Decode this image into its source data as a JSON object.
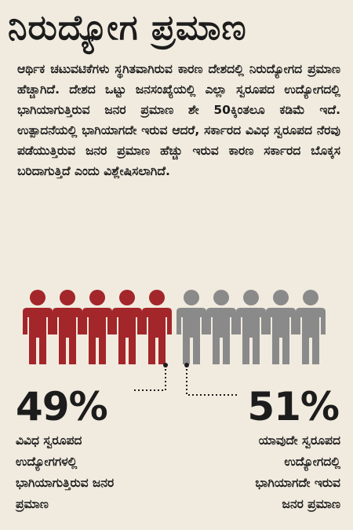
{
  "title": "ನಿರುದ್ಯೋಗ ಪ್ರಮಾಣ",
  "paragraph": "ಆರ್ಥಿಕ ಚಟುವಟಿಕೆಗಳು ಸ್ಥಗಿತವಾಗಿರುವ ಕಾರಣ ದೇಶದಲ್ಲಿ ನಿರುದ್ಯೋಗದ ಪ್ರಮಾಣ ಹೆಚ್ಚಾಗಿದೆ. ದೇಶದ ಒಟ್ಟು ಜನಸಂಖ್ಯೆಯಲ್ಲಿ ಎಲ್ಲಾ ಸ್ವರೂಪದ ಉದ್ಯೋಗದಲ್ಲಿ ಭಾಗಿಯಾಗುತ್ತಿರುವ ಜನರ ಪ್ರಮಾಣ ಶೇ 50ಕ್ಕಿಂತಲೂ ಕಡಿಮೆ ಇದೆ. ಉತ್ಪಾದನೆಯಲ್ಲಿ ಭಾಗಿಯಾಗದೇ ಇರುವ ಆದರೆ, ಸರ್ಕಾರದ ವಿವಿಧ ಸ್ವರೂಪದ ನೆರವು ಪಡೆಯುತ್ತಿರುವ ಜನರ ಪ್ರಮಾಣ ಹೆಚ್ಚು ಇರುವ ಕಾರಣ ಸರ್ಕಾರದ ಬೊಕ್ಕಸ ಬರಿದಾಗುತ್ತಿದೆ ಎಂದು ವಿಶ್ಲೇಷಿಸಲಾಗಿದೆ.",
  "people": {
    "employed_count": 5,
    "unemployed_count": 5,
    "employed_color": "#a3262a",
    "unemployed_color": "#8a8a8a"
  },
  "left_stat": {
    "percent": "49%",
    "caption": "ವಿವಿಧ ಸ್ವರೂಪದ\nಉದ್ಯೋಗಗಳಲ್ಲಿ\nಭಾಗಿಯಾಗುತ್ತಿರುವ ಜನರ\nಪ್ರಮಾಣ"
  },
  "right_stat": {
    "percent": "51%",
    "caption": "ಯಾವುದೇ ಸ್ವರೂಪದ\nಉದ್ಯೋಗದಲ್ಲಿ\nಭಾಗಿಯಾಗದೇ ಇರುವ\nಜನರ ಪ್ರಮಾಣ"
  }
}
